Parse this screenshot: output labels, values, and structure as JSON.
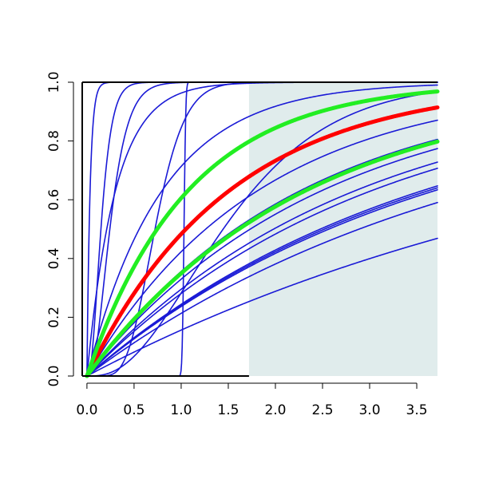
{
  "chart_data": {
    "type": "line",
    "title": "",
    "xlabel": "",
    "ylabel": "",
    "xlim": [
      -0.05,
      3.72
    ],
    "ylim": [
      0,
      1
    ],
    "x_ticks": [
      "0.0",
      "0.5",
      "1.0",
      "1.5",
      "2.0",
      "2.5",
      "3.0",
      "3.5"
    ],
    "x_tick_values": [
      0,
      0.5,
      1,
      1.5,
      2,
      2.5,
      3,
      3.5
    ],
    "y_ticks": [
      "0.0",
      "0.2",
      "0.4",
      "0.6",
      "0.8",
      "1.0"
    ],
    "y_tick_values": [
      0,
      0.2,
      0.4,
      0.6,
      0.8,
      1
    ],
    "grid": false,
    "shaded_region": {
      "x": [
        1.72,
        3.72
      ],
      "y": [
        0,
        1
      ],
      "color": "#e0ecec"
    },
    "colors": {
      "thin_curves": "#1a1ad6",
      "red_curve": "#ff0000",
      "green_curves": "#22ee22",
      "axis": "#000000"
    },
    "series": [
      {
        "color": "blue",
        "width": "thin",
        "kind": "exp",
        "rate": 30
      },
      {
        "color": "blue",
        "width": "thin",
        "kind": "gamma",
        "shape": 3,
        "rate": 18
      },
      {
        "color": "blue",
        "width": "thin",
        "kind": "gamma",
        "shape": 3,
        "rate": 11
      },
      {
        "color": "blue",
        "width": "thin",
        "kind": "exp",
        "rate": 3.3
      },
      {
        "color": "blue",
        "width": "thin",
        "kind": "exp",
        "rate": 1.25
      },
      {
        "color": "blue",
        "width": "thin",
        "kind": "gamma",
        "shape": 9,
        "rate": 12
      },
      {
        "color": "blue",
        "width": "thin",
        "kind": "gamma",
        "shape": 3,
        "rate": 1.85
      },
      {
        "color": "blue",
        "width": "thin",
        "kind": "step",
        "center": 1.03,
        "width_sd": 0.015
      },
      {
        "color": "blue",
        "width": "thin",
        "kind": "exp",
        "rate": 0.55
      },
      {
        "color": "blue",
        "width": "thin",
        "kind": "exp",
        "rate": 0.44
      },
      {
        "color": "blue",
        "width": "thin",
        "kind": "exp",
        "rate": 0.4
      },
      {
        "color": "blue",
        "width": "thin",
        "kind": "exp",
        "rate": 0.35
      },
      {
        "color": "blue",
        "width": "thin",
        "kind": "exp",
        "rate": 0.33
      },
      {
        "color": "blue",
        "width": "thin",
        "kind": "exp",
        "rate": 0.28
      },
      {
        "color": "blue",
        "width": "thin",
        "kind": "exp",
        "rate": 0.275
      },
      {
        "color": "blue",
        "width": "thin",
        "kind": "exp",
        "rate": 0.27
      },
      {
        "color": "blue",
        "width": "thin",
        "kind": "exp",
        "rate": 0.24
      },
      {
        "color": "blue",
        "width": "thin",
        "kind": "exp",
        "rate": 0.17
      },
      {
        "color": "red",
        "width": "thick",
        "kind": "exp",
        "rate": 0.66
      },
      {
        "color": "green",
        "width": "thick",
        "kind": "exp",
        "rate": 0.93
      },
      {
        "color": "green",
        "width": "thick",
        "kind": "exp",
        "rate": 0.43
      }
    ]
  }
}
